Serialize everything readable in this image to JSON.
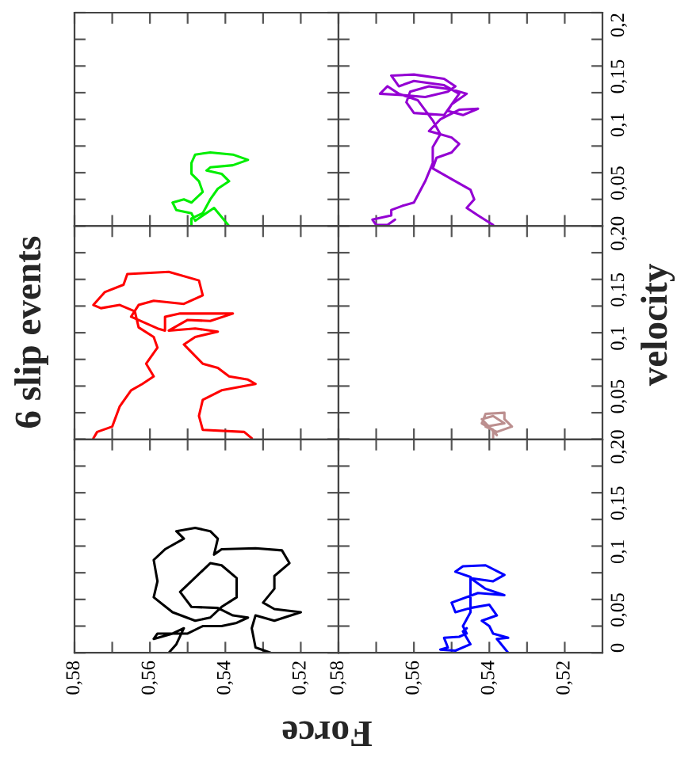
{
  "chart_data": [
    {
      "type": "line",
      "title": "6 slip events",
      "xlim": [
        0.58,
        0.51
      ],
      "ylim": [
        0,
        0.2
      ],
      "tick_labels": false,
      "xticks": [
        0.58,
        0.57,
        0.56,
        0.55,
        0.54,
        0.53,
        0.52
      ],
      "yticks": [
        0,
        0.025,
        0.05,
        0.075,
        0.1,
        0.125,
        0.15,
        0.175,
        0.2
      ],
      "series": [
        {
          "color": "#00ee00",
          "x": [
            0.539,
            0.543,
            0.548,
            0.549,
            0.553,
            0.554,
            0.551,
            0.549,
            0.546,
            0.547,
            0.549,
            0.549,
            0.548,
            0.544,
            0.538,
            0.534,
            0.538,
            0.544,
            0.545,
            0.541,
            0.539,
            0.542,
            0.544,
            0.546,
            0.549,
            0.549
          ],
          "values": [
            0,
            0.017,
            0.005,
            0.012,
            0.015,
            0.022,
            0.025,
            0.022,
            0.032,
            0.042,
            0.049,
            0.059,
            0.067,
            0.069,
            0.067,
            0.062,
            0.057,
            0.055,
            0.052,
            0.049,
            0.042,
            0.035,
            0.025,
            0.012,
            0.007,
            0
          ]
        }
      ]
    },
    {
      "type": "line",
      "xlim": [
        0.58,
        0.51
      ],
      "ylim": [
        0,
        0.2
      ],
      "tick_labels": "y",
      "xticks": [
        0.58,
        0.57,
        0.56,
        0.55,
        0.54,
        0.53,
        0.52
      ],
      "yticks": [
        {
          "value": 0,
          "label": "0"
        },
        {
          "value": 0.025,
          "label": null
        },
        {
          "value": 0.05,
          "label": "0,05"
        },
        {
          "value": 0.075,
          "label": null
        },
        {
          "value": 0.1,
          "label": "0,1"
        },
        {
          "value": 0.125,
          "label": null
        },
        {
          "value": 0.15,
          "label": "0,15"
        },
        {
          "value": 0.175,
          "label": null
        },
        {
          "value": 0.2,
          "label": "0,2"
        }
      ],
      "series": [
        {
          "color": "#9400d3",
          "x": [
            0.539,
            0.543,
            0.546,
            0.544,
            0.545,
            0.549,
            0.555,
            0.554,
            0.55,
            0.548,
            0.55,
            0.553,
            0.556,
            0.553,
            0.548,
            0.543,
            0.547,
            0.551,
            0.55,
            0.546,
            0.55,
            0.556,
            0.561,
            0.562,
            0.56,
            0.552,
            0.548,
            0.552,
            0.56,
            0.564,
            0.566,
            0.56,
            0.552,
            0.549,
            0.551,
            0.557,
            0.564,
            0.569,
            0.567,
            0.564,
            0.559,
            0.555,
            0.553,
            0.555,
            0.555,
            0.557,
            0.56,
            0.563,
            0.566,
            0.566,
            0.571,
            0.57,
            0.567,
            0.565
          ],
          "values": [
            0.001,
            0.01,
            0.017,
            0.025,
            0.034,
            0.042,
            0.054,
            0.064,
            0.069,
            0.077,
            0.083,
            0.086,
            0.089,
            0.1,
            0.109,
            0.11,
            0.104,
            0.108,
            0.114,
            0.124,
            0.128,
            0.131,
            0.126,
            0.116,
            0.106,
            0.104,
            0.124,
            0.132,
            0.136,
            0.131,
            0.141,
            0.142,
            0.138,
            0.131,
            0.126,
            0.121,
            0.123,
            0.124,
            0.131,
            0.124,
            0.118,
            0.099,
            0.086,
            0.074,
            0.059,
            0.042,
            0.022,
            0.019,
            0.015,
            0.01,
            0.006,
            0.001,
            0.001,
            0.006
          ]
        }
      ]
    },
    {
      "type": "line",
      "xlim": [
        0.58,
        0.51
      ],
      "ylim": [
        0,
        0.2
      ],
      "tick_labels": false,
      "xticks": [
        0.58,
        0.57,
        0.56,
        0.55,
        0.54,
        0.53,
        0.52
      ],
      "yticks": [
        0,
        0.025,
        0.05,
        0.075,
        0.1,
        0.125,
        0.15,
        0.175,
        0.2
      ],
      "series": [
        {
          "color": "#ff0000",
          "x": [
            0.575,
            0.574,
            0.57,
            0.568,
            0.565,
            0.562,
            0.559,
            0.561,
            0.558,
            0.559,
            0.563,
            0.564,
            0.568,
            0.573,
            0.575,
            0.572,
            0.567,
            0.566,
            0.555,
            0.547,
            0.546,
            0.551,
            0.559,
            0.563,
            0.565,
            0.558,
            0.556,
            0.556,
            0.552,
            0.539,
            0.538,
            0.544,
            0.55,
            0.555,
            0.548,
            0.542,
            0.548,
            0.551,
            0.546,
            0.542,
            0.539,
            0.534,
            0.532,
            0.541,
            0.546,
            0.547,
            0.546,
            0.535,
            0.533
          ],
          "values": [
            0.001,
            0.007,
            0.012,
            0.031,
            0.046,
            0.052,
            0.059,
            0.071,
            0.086,
            0.096,
            0.105,
            0.12,
            0.126,
            0.123,
            0.126,
            0.138,
            0.145,
            0.155,
            0.157,
            0.149,
            0.135,
            0.127,
            0.13,
            0.126,
            0.115,
            0.104,
            0.102,
            0.115,
            0.118,
            0.118,
            0.118,
            0.111,
            0.112,
            0.102,
            0.104,
            0.101,
            0.096,
            0.089,
            0.071,
            0.067,
            0.059,
            0.056,
            0.052,
            0.046,
            0.037,
            0.022,
            0.009,
            0.007,
            0.001
          ]
        }
      ]
    },
    {
      "type": "line",
      "ylabel": "velocity",
      "xlim": [
        0.58,
        0.51
      ],
      "ylim": [
        0,
        0.2
      ],
      "tick_labels": "y",
      "xticks": [
        0.58,
        0.57,
        0.56,
        0.55,
        0.54,
        0.53,
        0.52
      ],
      "yticks": [
        {
          "value": 0,
          "label": "0"
        },
        {
          "value": 0.025,
          "label": null
        },
        {
          "value": 0.05,
          "label": "0,05"
        },
        {
          "value": 0.075,
          "label": null
        },
        {
          "value": 0.1,
          "label": "0,1"
        },
        {
          "value": 0.125,
          "label": null
        },
        {
          "value": 0.15,
          "label": "0,15"
        },
        {
          "value": 0.175,
          "label": null
        },
        {
          "value": 0.2,
          "label": "0,2"
        }
      ],
      "series": [
        {
          "color": "#bc8f8f",
          "x": [
            0.539,
            0.539,
            0.542,
            0.541,
            0.536,
            0.536,
            0.534,
            0.538,
            0.541,
            0.536,
            0.539,
            0.542,
            0.538
          ],
          "values": [
            0.001,
            0.009,
            0.015,
            0.024,
            0.025,
            0.019,
            0.012,
            0.007,
            0.012,
            0.015,
            0.022,
            0.019,
            0.004
          ]
        }
      ]
    },
    {
      "type": "line",
      "xlabel": "Force",
      "xlim": [
        0.58,
        0.51
      ],
      "ylim": [
        0,
        0.2
      ],
      "tick_labels": "x",
      "xticks": [
        {
          "value": 0.58,
          "label": "0,58"
        },
        {
          "value": 0.57,
          "label": null
        },
        {
          "value": 0.56,
          "label": "0,56"
        },
        {
          "value": 0.55,
          "label": null
        },
        {
          "value": 0.54,
          "label": "0,54"
        },
        {
          "value": 0.53,
          "label": null
        },
        {
          "value": 0.52,
          "label": "0,52"
        }
      ],
      "yticks": [
        0,
        0.025,
        0.05,
        0.075,
        0.1,
        0.125,
        0.15,
        0.175,
        0.2
      ],
      "series": [
        {
          "color": "#000000",
          "x": [
            0.528,
            0.532,
            0.533,
            0.532,
            0.527,
            0.52,
            0.527,
            0.53,
            0.527,
            0.527,
            0.523,
            0.525,
            0.532,
            0.541,
            0.543,
            0.542,
            0.544,
            0.548,
            0.553,
            0.551,
            0.556,
            0.559,
            0.558,
            0.559,
            0.554,
            0.548,
            0.544,
            0.541,
            0.537,
            0.537,
            0.541,
            0.544,
            0.552,
            0.549,
            0.542,
            0.538,
            0.534,
            0.537,
            0.541,
            0.546,
            0.55,
            0.558,
            0.559,
            0.554,
            0.551,
            0.553,
            0.555
          ],
          "values": [
            0,
            0.005,
            0.023,
            0.035,
            0.03,
            0.038,
            0.041,
            0.047,
            0.06,
            0.072,
            0.084,
            0.096,
            0.098,
            0.097,
            0.092,
            0.107,
            0.114,
            0.117,
            0.114,
            0.107,
            0.097,
            0.087,
            0.067,
            0.052,
            0.038,
            0.03,
            0.033,
            0.043,
            0.052,
            0.07,
            0.082,
            0.084,
            0.057,
            0.043,
            0.042,
            0.035,
            0.033,
            0.028,
            0.025,
            0.025,
            0.018,
            0.018,
            0.013,
            0.018,
            0.023,
            0.008,
            0
          ]
        }
      ]
    },
    {
      "type": "line",
      "xlim": [
        0.58,
        0.51
      ],
      "ylim": [
        0,
        0.2
      ],
      "xticks": [
        {
          "value": 0.58,
          "label": "0,58"
        },
        {
          "value": 0.57,
          "label": null
        },
        {
          "value": 0.56,
          "label": "0,56"
        },
        {
          "value": 0.55,
          "label": null
        },
        {
          "value": 0.54,
          "label": "0,54"
        },
        {
          "value": 0.53,
          "label": null
        },
        {
          "value": 0.52,
          "label": "0,52"
        }
      ],
      "yticks": [
        {
          "value": 0,
          "label": "0"
        },
        {
          "value": 0.025,
          "label": null
        },
        {
          "value": 0.05,
          "label": "0,05"
        },
        {
          "value": 0.075,
          "label": null
        },
        {
          "value": 0.1,
          "label": "0,1"
        },
        {
          "value": 0.125,
          "label": null
        },
        {
          "value": 0.15,
          "label": "0,15"
        },
        {
          "value": 0.175,
          "label": null
        },
        {
          "value": 0.2,
          "label": "0,2"
        }
      ],
      "series": [
        {
          "color": "#0000ff",
          "x": [
            0.535,
            0.538,
            0.535,
            0.539,
            0.54,
            0.542,
            0.538,
            0.54,
            0.545,
            0.549,
            0.55,
            0.543,
            0.536,
            0.541,
            0.545,
            0.539,
            0.536,
            0.541,
            0.547,
            0.549,
            0.545,
            0.545,
            0.547,
            0.546,
            0.548,
            0.552,
            0.551,
            0.553,
            0.549,
            0.545,
            0.547,
            0.546
          ],
          "values": [
            0,
            0.013,
            0.014,
            0.018,
            0.025,
            0.03,
            0.035,
            0.045,
            0.042,
            0.038,
            0.047,
            0.056,
            0.054,
            0.06,
            0.07,
            0.067,
            0.073,
            0.082,
            0.081,
            0.076,
            0.071,
            0.038,
            0.025,
            0.018,
            0.015,
            0.014,
            0.005,
            0.003,
            0.002,
            0.008,
            0.02,
            0.023
          ]
        }
      ]
    }
  ]
}
